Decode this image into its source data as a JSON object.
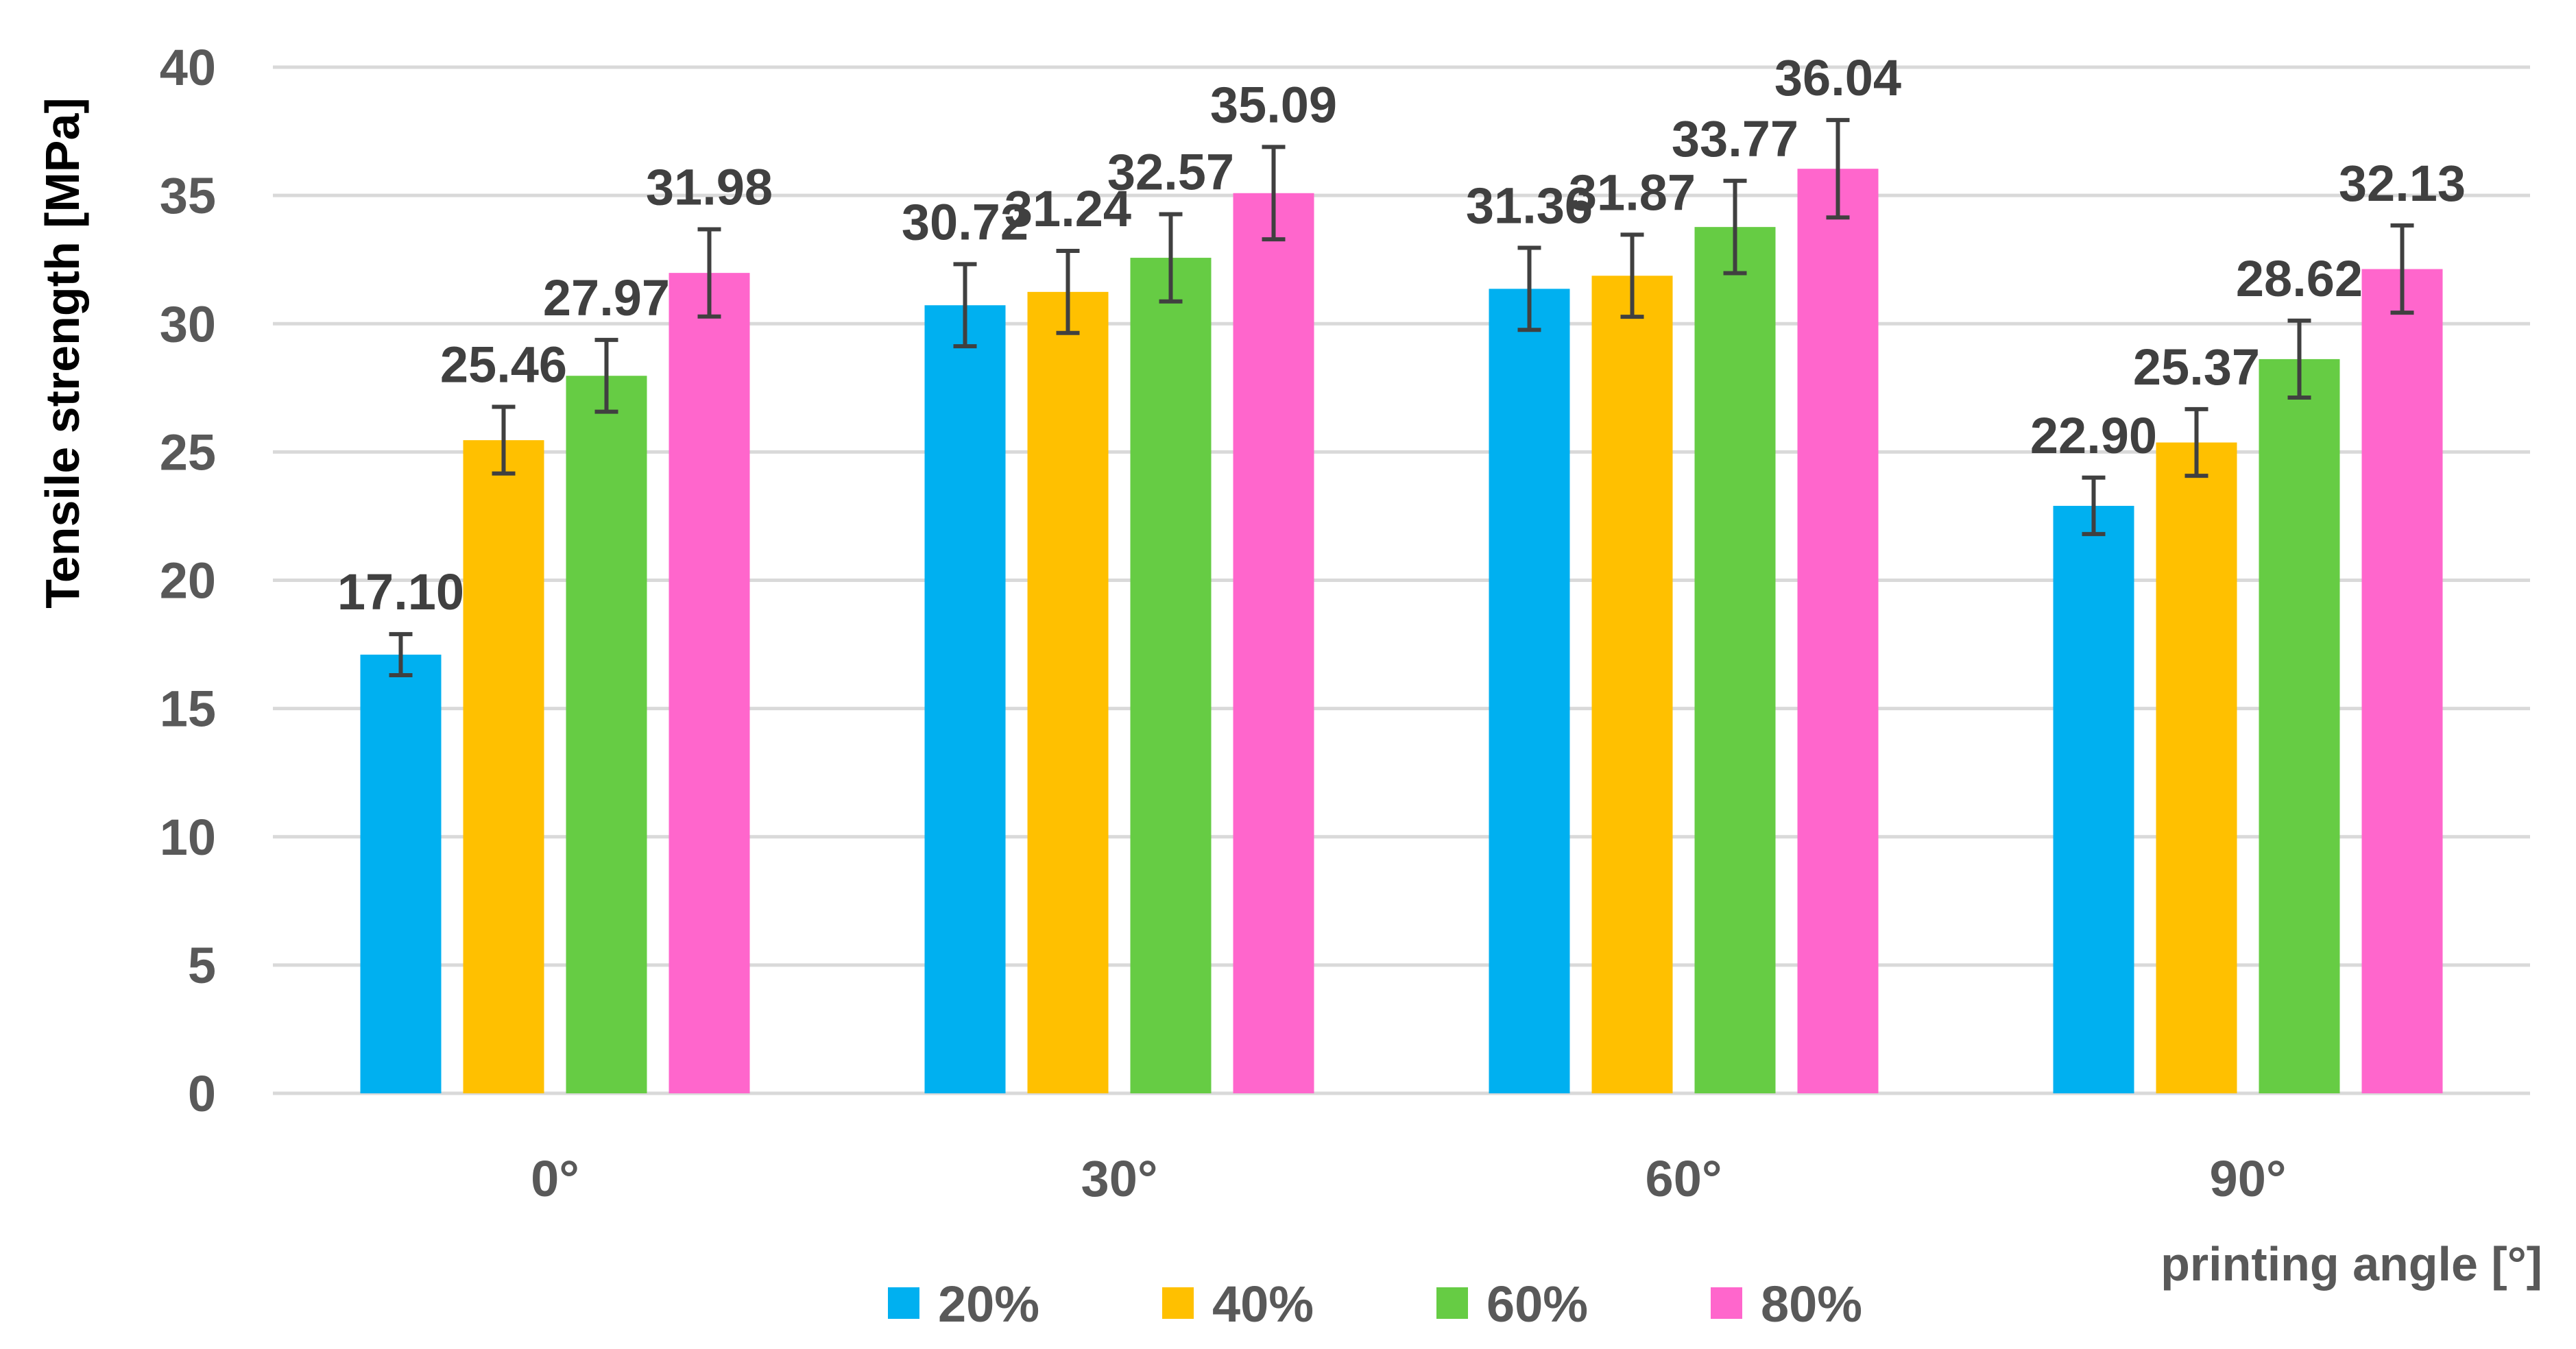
{
  "chart_data": {
    "type": "bar",
    "title": "",
    "xlabel": "printing angle [°]",
    "ylabel": "Tensile strength [MPa]",
    "ylim": [
      0,
      40
    ],
    "yticks": [
      0,
      5,
      10,
      15,
      20,
      25,
      30,
      35,
      40
    ],
    "grid": true,
    "legend_position": "bottom",
    "categories": [
      "0°",
      "30°",
      "60°",
      "90°"
    ],
    "series": [
      {
        "name": "20%",
        "color": "#00b0f0",
        "values": [
          17.1,
          30.72,
          31.36,
          22.9
        ],
        "errors": [
          0.8,
          1.6,
          1.6,
          1.1
        ],
        "labels": [
          "17.10",
          "30.72",
          "31.36",
          "22.90"
        ]
      },
      {
        "name": "40%",
        "color": "#ffc000",
        "values": [
          25.46,
          31.24,
          31.87,
          25.37
        ],
        "errors": [
          1.3,
          1.6,
          1.6,
          1.3
        ],
        "labels": [
          "25.46",
          "31.24",
          "31.87",
          "25.37"
        ]
      },
      {
        "name": "60%",
        "color": "#66cc44",
        "values": [
          27.97,
          32.57,
          33.77,
          28.62
        ],
        "errors": [
          1.4,
          1.7,
          1.8,
          1.5
        ],
        "labels": [
          "27.97",
          "32.57",
          "33.77",
          "28.62"
        ]
      },
      {
        "name": "80%",
        "color": "#ff66cc",
        "values": [
          31.98,
          35.09,
          36.04,
          32.13
        ],
        "errors": [
          1.7,
          1.8,
          1.9,
          1.7
        ],
        "labels": [
          "31.98",
          "35.09",
          "36.04",
          "32.13"
        ]
      }
    ]
  }
}
